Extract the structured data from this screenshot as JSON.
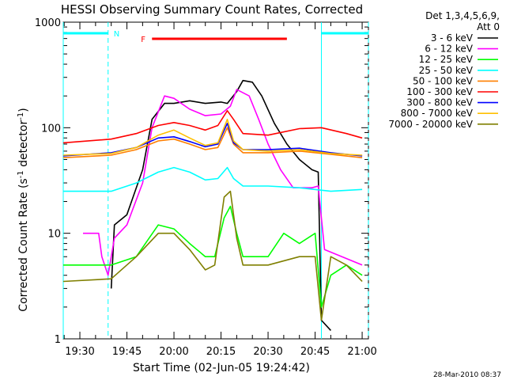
{
  "chart_data": {
    "type": "line",
    "title": "HESSI Observing Summary Count Rates, Corrected",
    "xlabel": "Start Time (02-Jun-05 19:24:42)",
    "ylabel": "Corrected Count Rate (s⁻¹ detector⁻¹)",
    "ylabel_parts": {
      "main": "Corrected Count Rate (s",
      "sup1": "-1",
      "mid": " detector",
      "sup2": "-1",
      "end": ")"
    },
    "yscale": "log",
    "xlim": [
      "19:24:42",
      "21:02:00"
    ],
    "ylim": [
      1,
      1000
    ],
    "x_ticks": [
      "19:30",
      "19:45",
      "20:00",
      "20:15",
      "20:30",
      "20:45",
      "21:00"
    ],
    "y_ticks": [
      "1",
      "10",
      "100",
      "1000"
    ],
    "legend_header": [
      "Det 1,3,4,5,6,9,",
      "Att 0"
    ],
    "legend_placement": "right",
    "flags": {
      "N_label": "N",
      "F_label": "F",
      "night_intervals": [
        [
          "19:24:42",
          "19:39:00"
        ],
        [
          "20:47:00",
          "21:02:00"
        ]
      ],
      "flare_interval": [
        "19:53:00",
        "20:36:00"
      ]
    },
    "footer_date": "28-Mar-2010 08:37",
    "series": [
      {
        "name": "3 - 6 keV",
        "color": "#000000",
        "points": [
          [
            "19:24:42",
            null
          ],
          [
            "19:40:00",
            3
          ],
          [
            "19:41:00",
            12
          ],
          [
            "19:45:00",
            15
          ],
          [
            "19:50:00",
            40
          ],
          [
            "19:53:00",
            120
          ],
          [
            "19:57:00",
            170
          ],
          [
            "20:00:00",
            170
          ],
          [
            "20:05:00",
            180
          ],
          [
            "20:10:00",
            170
          ],
          [
            "20:15:00",
            175
          ],
          [
            "20:17:00",
            170
          ],
          [
            "20:20:00",
            220
          ],
          [
            "20:22:00",
            280
          ],
          [
            "20:25:00",
            270
          ],
          [
            "20:28:00",
            200
          ],
          [
            "20:32:00",
            110
          ],
          [
            "20:36:00",
            70
          ],
          [
            "20:40:00",
            50
          ],
          [
            "20:44:00",
            40
          ],
          [
            "20:46:00",
            38
          ],
          [
            "20:47:00",
            1.5
          ],
          [
            "20:50:00",
            1.2
          ]
        ]
      },
      {
        "name": "6 - 12 keV",
        "color": "#ff00ff",
        "points": [
          [
            "19:31:00",
            10
          ],
          [
            "19:36:00",
            10
          ],
          [
            "19:37:00",
            6
          ],
          [
            "19:39:00",
            4
          ],
          [
            "19:41:00",
            9
          ],
          [
            "19:45:00",
            12
          ],
          [
            "19:50:00",
            30
          ],
          [
            "19:53:00",
            100
          ],
          [
            "19:57:00",
            200
          ],
          [
            "20:00:00",
            190
          ],
          [
            "20:05:00",
            150
          ],
          [
            "20:10:00",
            130
          ],
          [
            "20:15:00",
            135
          ],
          [
            "20:18:00",
            160
          ],
          [
            "20:20:00",
            230
          ],
          [
            "20:24:00",
            200
          ],
          [
            "20:27:00",
            120
          ],
          [
            "20:30:00",
            70
          ],
          [
            "20:34:00",
            40
          ],
          [
            "20:38:00",
            27
          ],
          [
            "20:44:00",
            27
          ],
          [
            "20:46:00",
            28
          ],
          [
            "20:48:00",
            7
          ],
          [
            "21:00:00",
            5
          ]
        ]
      },
      {
        "name": "12 - 25 keV",
        "color": "#00ff00",
        "points": [
          [
            "19:24:42",
            5
          ],
          [
            "19:40:00",
            5
          ],
          [
            "19:48:00",
            6
          ],
          [
            "19:55:00",
            12
          ],
          [
            "20:00:00",
            11
          ],
          [
            "20:05:00",
            8
          ],
          [
            "20:10:00",
            6
          ],
          [
            "20:13:00",
            6
          ],
          [
            "20:16:00",
            14
          ],
          [
            "20:18:00",
            18
          ],
          [
            "20:20:00",
            10
          ],
          [
            "20:22:00",
            6
          ],
          [
            "20:30:00",
            6
          ],
          [
            "20:35:00",
            10
          ],
          [
            "20:40:00",
            8
          ],
          [
            "20:45:00",
            10
          ],
          [
            "20:47:00",
            2
          ],
          [
            "20:50:00",
            4
          ],
          [
            "20:55:00",
            5
          ],
          [
            "21:00:00",
            4
          ]
        ]
      },
      {
        "name": "25 - 50 keV",
        "color": "#00ffff",
        "points": [
          [
            "19:24:42",
            25
          ],
          [
            "19:40:00",
            25
          ],
          [
            "19:48:00",
            30
          ],
          [
            "19:55:00",
            38
          ],
          [
            "20:00:00",
            42
          ],
          [
            "20:05:00",
            38
          ],
          [
            "20:10:00",
            32
          ],
          [
            "20:14:00",
            33
          ],
          [
            "20:17:00",
            42
          ],
          [
            "20:19:00",
            33
          ],
          [
            "20:22:00",
            28
          ],
          [
            "20:30:00",
            28
          ],
          [
            "20:40:00",
            27
          ],
          [
            "20:50:00",
            25
          ],
          [
            "21:00:00",
            26
          ]
        ]
      },
      {
        "name": "50 - 100 keV",
        "color": "#ff7f00",
        "points": [
          [
            "19:24:42",
            52
          ],
          [
            "19:40:00",
            55
          ],
          [
            "19:48:00",
            62
          ],
          [
            "19:55:00",
            75
          ],
          [
            "20:00:00",
            78
          ],
          [
            "20:05:00",
            70
          ],
          [
            "20:10:00",
            62
          ],
          [
            "20:14:00",
            65
          ],
          [
            "20:17:00",
            100
          ],
          [
            "20:19:00",
            70
          ],
          [
            "20:22:00",
            58
          ],
          [
            "20:30:00",
            58
          ],
          [
            "20:40:00",
            60
          ],
          [
            "20:50:00",
            56
          ],
          [
            "21:00:00",
            52
          ]
        ]
      },
      {
        "name": "100 - 300 keV",
        "color": "#ff0000",
        "points": [
          [
            "19:24:42",
            72
          ],
          [
            "19:40:00",
            78
          ],
          [
            "19:48:00",
            88
          ],
          [
            "19:55:00",
            105
          ],
          [
            "20:00:00",
            112
          ],
          [
            "20:05:00",
            105
          ],
          [
            "20:10:00",
            95
          ],
          [
            "20:14:00",
            105
          ],
          [
            "20:17:00",
            145
          ],
          [
            "20:19:00",
            120
          ],
          [
            "20:22:00",
            88
          ],
          [
            "20:30:00",
            85
          ],
          [
            "20:40:00",
            98
          ],
          [
            "20:47:00",
            100
          ],
          [
            "20:55:00",
            88
          ],
          [
            "21:00:00",
            80
          ]
        ]
      },
      {
        "name": "300 - 800 keV",
        "color": "#0000ff",
        "points": [
          [
            "19:24:42",
            54
          ],
          [
            "19:40:00",
            58
          ],
          [
            "19:48:00",
            65
          ],
          [
            "19:55:00",
            80
          ],
          [
            "20:00:00",
            82
          ],
          [
            "20:05:00",
            74
          ],
          [
            "20:10:00",
            66
          ],
          [
            "20:14:00",
            70
          ],
          [
            "20:17:00",
            110
          ],
          [
            "20:19:00",
            72
          ],
          [
            "20:22:00",
            62
          ],
          [
            "20:30:00",
            62
          ],
          [
            "20:40:00",
            64
          ],
          [
            "20:50:00",
            58
          ],
          [
            "21:00:00",
            54
          ]
        ]
      },
      {
        "name": "800 - 7000 keV",
        "color": "#ffbf00",
        "points": [
          [
            "19:24:42",
            55
          ],
          [
            "19:40:00",
            57
          ],
          [
            "19:48:00",
            65
          ],
          [
            "19:55:00",
            85
          ],
          [
            "20:00:00",
            95
          ],
          [
            "20:05:00",
            80
          ],
          [
            "20:10:00",
            68
          ],
          [
            "20:14:00",
            72
          ],
          [
            "20:17:00",
            120
          ],
          [
            "20:19:00",
            75
          ],
          [
            "20:22:00",
            62
          ],
          [
            "20:30:00",
            60
          ],
          [
            "20:40:00",
            62
          ],
          [
            "20:50:00",
            57
          ],
          [
            "21:00:00",
            55
          ]
        ]
      },
      {
        "name": "7000 - 20000 keV",
        "color": "#7f7f00",
        "points": [
          [
            "19:24:42",
            3.5
          ],
          [
            "19:40:00",
            3.7
          ],
          [
            "19:48:00",
            6
          ],
          [
            "19:55:00",
            10
          ],
          [
            "20:00:00",
            10
          ],
          [
            "20:05:00",
            7
          ],
          [
            "20:10:00",
            4.5
          ],
          [
            "20:13:00",
            5
          ],
          [
            "20:16:00",
            22
          ],
          [
            "20:18:00",
            25
          ],
          [
            "20:20:00",
            9
          ],
          [
            "20:22:00",
            5
          ],
          [
            "20:30:00",
            5
          ],
          [
            "20:40:00",
            6
          ],
          [
            "20:45:00",
            6
          ],
          [
            "20:47:00",
            1.5
          ],
          [
            "20:50:00",
            6
          ],
          [
            "20:55:00",
            5
          ],
          [
            "21:00:00",
            3.5
          ]
        ]
      }
    ]
  }
}
